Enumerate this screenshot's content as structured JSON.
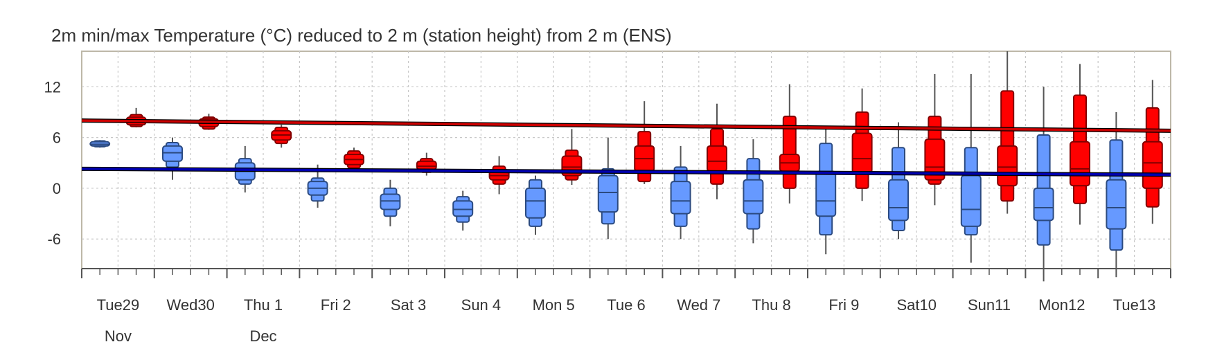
{
  "chart_data": {
    "type": "boxplot",
    "title": "2m min/max Temperature (°C) reduced to 2 m (station height) from 2 m (ENS)",
    "ylim": [
      -9.5,
      16.2
    ],
    "y_ticks": [
      12,
      6,
      0,
      -6
    ],
    "grid": true,
    "days": [
      {
        "label": "Tue29",
        "sublabel": "Nov",
        "weekend": false
      },
      {
        "label": "Wed30",
        "sublabel": "",
        "weekend": false
      },
      {
        "label": "Thu 1",
        "sublabel": "Dec",
        "weekend": false
      },
      {
        "label": "Fri 2",
        "sublabel": "",
        "weekend": false
      },
      {
        "label": "Sat 3",
        "sublabel": "",
        "weekend": false
      },
      {
        "label": "Sun 4",
        "sublabel": "",
        "weekend": true
      },
      {
        "label": "Mon 5",
        "sublabel": "",
        "weekend": false
      },
      {
        "label": "Tue 6",
        "sublabel": "",
        "weekend": false
      },
      {
        "label": "Wed 7",
        "sublabel": "",
        "weekend": false
      },
      {
        "label": "Thu 8",
        "sublabel": "",
        "weekend": false
      },
      {
        "label": "Fri 9",
        "sublabel": "",
        "weekend": false
      },
      {
        "label": "Sat10",
        "sublabel": "",
        "weekend": false
      },
      {
        "label": "Sun11",
        "sublabel": "",
        "weekend": true
      },
      {
        "label": "Mon12",
        "sublabel": "",
        "weekend": false
      },
      {
        "label": "Tue13",
        "sublabel": "",
        "weekend": false
      }
    ],
    "series": [
      {
        "kind": "min",
        "color": "#6699ff",
        "stroke": "#2b4a80",
        "boxes": [
          {
            "day": 0,
            "whisker_low": 4.8,
            "p10": 4.9,
            "p25": 5.0,
            "median": 5.2,
            "p75": 5.5,
            "p90": 5.6,
            "whisker_high": 5.7
          },
          {
            "day": 1,
            "whisker_low": 1.0,
            "p10": 2.5,
            "p25": 3.2,
            "median": 4.2,
            "p75": 5.0,
            "p90": 5.4,
            "whisker_high": 6.0
          },
          {
            "day": 2,
            "whisker_low": -0.5,
            "p10": 0.5,
            "p25": 1.0,
            "median": 2.0,
            "p75": 3.0,
            "p90": 3.5,
            "whisker_high": 5.0
          },
          {
            "day": 3,
            "whisker_low": -2.3,
            "p10": -1.5,
            "p25": -0.8,
            "median": 0.0,
            "p75": 0.8,
            "p90": 1.2,
            "whisker_high": 2.8
          },
          {
            "day": 4,
            "whisker_low": -4.5,
            "p10": -3.3,
            "p25": -2.5,
            "median": -1.5,
            "p75": -0.7,
            "p90": 0.0,
            "whisker_high": 1.0
          },
          {
            "day": 5,
            "whisker_low": -5.0,
            "p10": -4.0,
            "p25": -3.3,
            "median": -2.5,
            "p75": -1.5,
            "p90": -1.0,
            "whisker_high": -0.3
          },
          {
            "day": 6,
            "whisker_low": -5.5,
            "p10": -4.5,
            "p25": -3.5,
            "median": -1.5,
            "p75": 0.0,
            "p90": 1.0,
            "whisker_high": 1.5
          },
          {
            "day": 7,
            "whisker_low": -6.0,
            "p10": -4.2,
            "p25": -2.8,
            "median": -0.5,
            "p75": 1.5,
            "p90": 2.3,
            "whisker_high": 6.0
          },
          {
            "day": 8,
            "whisker_low": -6.0,
            "p10": -4.5,
            "p25": -3.0,
            "median": -1.5,
            "p75": 0.8,
            "p90": 2.5,
            "whisker_high": 5.0
          },
          {
            "day": 9,
            "whisker_low": -6.5,
            "p10": -4.8,
            "p25": -3.0,
            "median": -1.5,
            "p75": 1.0,
            "p90": 3.5,
            "whisker_high": 5.8
          },
          {
            "day": 10,
            "whisker_low": -7.8,
            "p10": -5.5,
            "p25": -3.3,
            "median": -1.5,
            "p75": 2.0,
            "p90": 5.3,
            "whisker_high": 7.0
          },
          {
            "day": 11,
            "whisker_low": -6.0,
            "p10": -5.0,
            "p25": -3.8,
            "median": -2.3,
            "p75": 1.0,
            "p90": 4.8,
            "whisker_high": 7.8
          },
          {
            "day": 12,
            "whisker_low": -8.8,
            "p10": -5.5,
            "p25": -4.5,
            "median": -2.5,
            "p75": 1.5,
            "p90": 4.8,
            "whisker_high": 13.5
          },
          {
            "day": 13,
            "whisker_low": -11.0,
            "p10": -6.7,
            "p25": -3.8,
            "median": -2.3,
            "p75": 0.0,
            "p90": 6.3,
            "whisker_high": 12.0
          },
          {
            "day": 14,
            "whisker_low": -10.5,
            "p10": -7.3,
            "p25": -4.8,
            "median": -2.3,
            "p75": 1.0,
            "p90": 5.7,
            "whisker_high": 9.0
          }
        ]
      },
      {
        "kind": "max",
        "color": "#ff0000",
        "stroke": "#800000",
        "boxes": [
          {
            "day": 0,
            "whisker_low": 7.2,
            "p10": 7.3,
            "p25": 7.5,
            "median": 7.9,
            "p75": 8.4,
            "p90": 8.7,
            "whisker_high": 9.5
          },
          {
            "day": 1,
            "whisker_low": 6.9,
            "p10": 7.0,
            "p25": 7.3,
            "median": 7.7,
            "p75": 8.2,
            "p90": 8.4,
            "whisker_high": 8.8
          },
          {
            "day": 2,
            "whisker_low": 4.8,
            "p10": 5.3,
            "p25": 5.7,
            "median": 6.3,
            "p75": 6.8,
            "p90": 7.2,
            "whisker_high": 7.5
          },
          {
            "day": 3,
            "whisker_low": 2.0,
            "p10": 2.4,
            "p25": 2.8,
            "median": 3.4,
            "p75": 4.0,
            "p90": 4.4,
            "whisker_high": 4.8
          },
          {
            "day": 4,
            "whisker_low": 1.5,
            "p10": 1.9,
            "p25": 2.2,
            "median": 2.6,
            "p75": 3.2,
            "p90": 3.5,
            "whisker_high": 4.2
          },
          {
            "day": 5,
            "whisker_low": -0.7,
            "p10": 0.5,
            "p25": 1.0,
            "median": 1.5,
            "p75": 2.2,
            "p90": 2.6,
            "whisker_high": 3.8
          },
          {
            "day": 6,
            "whisker_low": 0.4,
            "p10": 1.0,
            "p25": 1.5,
            "median": 2.5,
            "p75": 3.8,
            "p90": 4.5,
            "whisker_high": 7.0
          },
          {
            "day": 7,
            "whisker_low": 0.5,
            "p10": 0.8,
            "p25": 2.0,
            "median": 3.5,
            "p75": 5.0,
            "p90": 6.7,
            "whisker_high": 10.3
          },
          {
            "day": 8,
            "whisker_low": -1.3,
            "p10": 0.5,
            "p25": 2.0,
            "median": 3.2,
            "p75": 5.0,
            "p90": 7.0,
            "whisker_high": 10.0
          },
          {
            "day": 9,
            "whisker_low": -1.8,
            "p10": 0.0,
            "p25": 2.0,
            "median": 3.0,
            "p75": 4.0,
            "p90": 8.5,
            "whisker_high": 12.3
          },
          {
            "day": 10,
            "whisker_low": -1.5,
            "p10": 0.0,
            "p25": 1.8,
            "median": 3.5,
            "p75": 6.5,
            "p90": 9.0,
            "whisker_high": 11.8
          },
          {
            "day": 11,
            "whisker_low": -2.0,
            "p10": 0.5,
            "p25": 1.0,
            "median": 2.5,
            "p75": 5.8,
            "p90": 8.5,
            "whisker_high": 13.5
          },
          {
            "day": 12,
            "whisker_low": -3.0,
            "p10": -1.5,
            "p25": 0.3,
            "median": 2.5,
            "p75": 5.0,
            "p90": 11.5,
            "whisker_high": 16.2
          },
          {
            "day": 13,
            "whisker_low": -4.3,
            "p10": -1.8,
            "p25": 0.3,
            "median": 2.3,
            "p75": 5.5,
            "p90": 11.0,
            "whisker_high": 14.7
          },
          {
            "day": 14,
            "whisker_low": -4.2,
            "p10": -2.2,
            "p25": 0.0,
            "median": 3.0,
            "p75": 5.5,
            "p90": 9.5,
            "whisker_high": 12.8
          }
        ]
      }
    ],
    "reference_lines": [
      {
        "color": "#cc0000",
        "y_start": 8.0,
        "y_end": 6.8
      },
      {
        "color": "#0000b0",
        "y_start": 2.3,
        "y_end": 1.6
      }
    ]
  }
}
